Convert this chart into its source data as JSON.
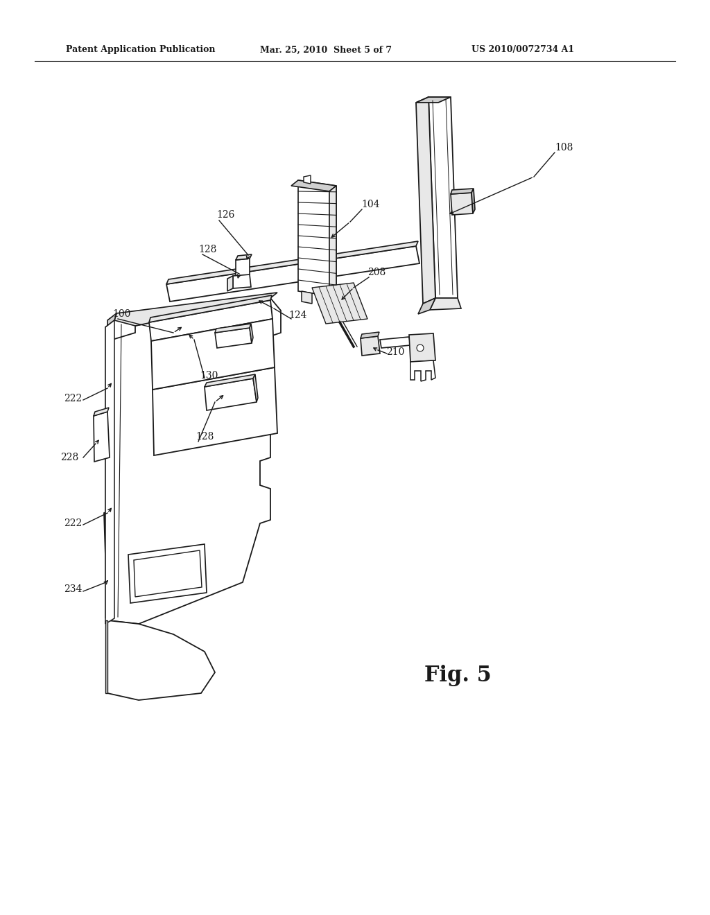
{
  "bg_color": "#ffffff",
  "header_left": "Patent Application Publication",
  "header_mid": "Mar. 25, 2010  Sheet 5 of 7",
  "header_right": "US 2010/0072734 A1",
  "fig_label": "Fig. 5",
  "line_color": "#1a1a1a",
  "face_white": "#ffffff",
  "face_light": "#e8e8e8",
  "face_mid": "#d0d0d0",
  "face_dark": "#b8b8b8"
}
